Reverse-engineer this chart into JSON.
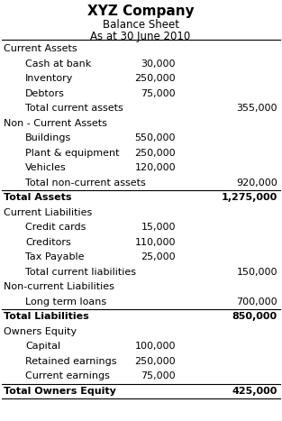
{
  "title1": "XYZ Company",
  "title2": "Balance Sheet",
  "title3": "As at 30 June 2010",
  "bg_color": "#ffffff",
  "rows": [
    {
      "text": "Current Assets",
      "indent": 0,
      "col1": "",
      "col2": "",
      "bold": false,
      "top_line": false,
      "bottom_line": false
    },
    {
      "text": "Cash at bank",
      "indent": 1,
      "col1": "30,000",
      "col2": "",
      "bold": false,
      "top_line": false,
      "bottom_line": false
    },
    {
      "text": "Inventory",
      "indent": 1,
      "col1": "250,000",
      "col2": "",
      "bold": false,
      "top_line": false,
      "bottom_line": false
    },
    {
      "text": "Debtors",
      "indent": 1,
      "col1": "75,000",
      "col2": "",
      "bold": false,
      "top_line": false,
      "bottom_line": false
    },
    {
      "text": "Total current assets",
      "indent": 1,
      "col1": "",
      "col2": "355,000",
      "bold": false,
      "top_line": false,
      "bottom_line": false
    },
    {
      "text": "Non - Current Assets",
      "indent": 0,
      "col1": "",
      "col2": "",
      "bold": false,
      "top_line": false,
      "bottom_line": false
    },
    {
      "text": "Buildings",
      "indent": 1,
      "col1": "550,000",
      "col2": "",
      "bold": false,
      "top_line": false,
      "bottom_line": false
    },
    {
      "text": "Plant & equipment",
      "indent": 1,
      "col1": "250,000",
      "col2": "",
      "bold": false,
      "top_line": false,
      "bottom_line": false
    },
    {
      "text": "Vehicles",
      "indent": 1,
      "col1": "120,000",
      "col2": "",
      "bold": false,
      "top_line": false,
      "bottom_line": false
    },
    {
      "text": "Total non-current assets",
      "indent": 1,
      "col1": "",
      "col2": "920,000",
      "bold": false,
      "top_line": false,
      "bottom_line": false
    },
    {
      "text": "Total Assets",
      "indent": 0,
      "col1": "",
      "col2": "1,275,000",
      "bold": true,
      "top_line": true,
      "bottom_line": false
    },
    {
      "text": "Current Liabilities",
      "indent": 0,
      "col1": "",
      "col2": "",
      "bold": false,
      "top_line": false,
      "bottom_line": false
    },
    {
      "text": "Credit cards",
      "indent": 1,
      "col1": "15,000",
      "col2": "",
      "bold": false,
      "top_line": false,
      "bottom_line": false
    },
    {
      "text": "Creditors",
      "indent": 1,
      "col1": "110,000",
      "col2": "",
      "bold": false,
      "top_line": false,
      "bottom_line": false
    },
    {
      "text": "Tax Payable",
      "indent": 1,
      "col1": "25,000",
      "col2": "",
      "bold": false,
      "top_line": false,
      "bottom_line": false
    },
    {
      "text": "Total current liabilities",
      "indent": 1,
      "col1": "",
      "col2": "150,000",
      "bold": false,
      "top_line": false,
      "bottom_line": false
    },
    {
      "text": "Non-current Liabilities",
      "indent": 0,
      "col1": "",
      "col2": "",
      "bold": false,
      "top_line": false,
      "bottom_line": false
    },
    {
      "text": "Long term loans",
      "indent": 1,
      "col1": "",
      "col2": "700,000",
      "bold": false,
      "top_line": false,
      "bottom_line": false
    },
    {
      "text": "Total Liabilities",
      "indent": 0,
      "col1": "",
      "col2": "850,000",
      "bold": true,
      "top_line": true,
      "bottom_line": false
    },
    {
      "text": "Owners Equity",
      "indent": 0,
      "col1": "",
      "col2": "",
      "bold": false,
      "top_line": false,
      "bottom_line": false
    },
    {
      "text": "Capital",
      "indent": 1,
      "col1": "100,000",
      "col2": "",
      "bold": false,
      "top_line": false,
      "bottom_line": false
    },
    {
      "text": "Retained earnings",
      "indent": 1,
      "col1": "250,000",
      "col2": "",
      "bold": false,
      "top_line": false,
      "bottom_line": false
    },
    {
      "text": "Current earnings",
      "indent": 1,
      "col1": "75,000",
      "col2": "",
      "bold": false,
      "top_line": false,
      "bottom_line": false
    },
    {
      "text": "Total Owners Equity",
      "indent": 0,
      "col1": "",
      "col2": "425,000",
      "bold": true,
      "top_line": true,
      "bottom_line": true
    }
  ]
}
